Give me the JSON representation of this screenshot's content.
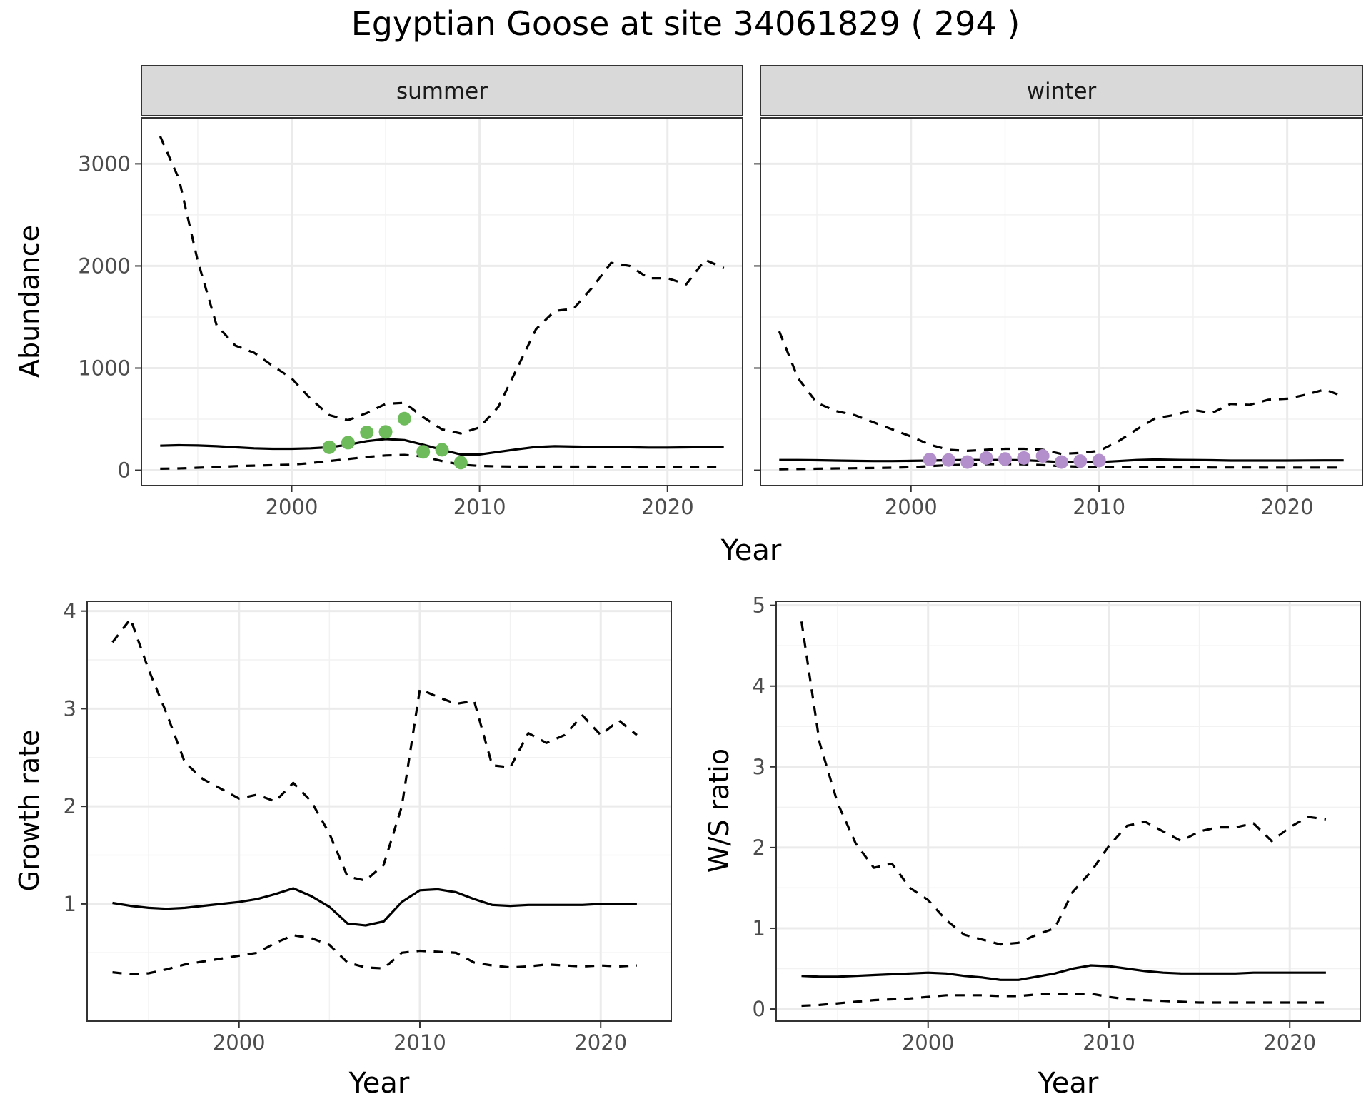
{
  "title": "Egyptian Goose at site 34061829 ( 294 )",
  "colors": {
    "summer_points": "#6dbb5b",
    "winter_points": "#b38fcb",
    "line": "#000000",
    "strip_bg": "#d9d9d9",
    "grid": "#ebebeb"
  },
  "chart_data": [
    {
      "type": "line",
      "panel": "summer",
      "strip_label": "summer",
      "xlabel": "Year",
      "ylabel": "Abundance",
      "xlim": [
        1992,
        2024
      ],
      "ylim": [
        -150,
        3450
      ],
      "xticks": [
        2000,
        2010,
        2020
      ],
      "yticks": [
        0,
        1000,
        2000,
        3000
      ],
      "grid": true,
      "series": [
        {
          "role": "mean",
          "style": "solid",
          "x": [
            1993,
            1994,
            1995,
            1996,
            1997,
            1998,
            1999,
            2000,
            2001,
            2002,
            2003,
            2004,
            2005,
            2006,
            2007,
            2008,
            2009,
            2010,
            2011,
            2012,
            2013,
            2014,
            2015,
            2016,
            2017,
            2018,
            2019,
            2020,
            2021,
            2022,
            2023
          ],
          "y": [
            240,
            245,
            242,
            235,
            225,
            215,
            210,
            210,
            215,
            225,
            250,
            285,
            305,
            295,
            250,
            200,
            155,
            155,
            180,
            205,
            228,
            235,
            232,
            228,
            226,
            225,
            222,
            222,
            224,
            226,
            226
          ]
        },
        {
          "role": "upper",
          "style": "dashed",
          "x": [
            1993,
            1994,
            1995,
            1996,
            1997,
            1998,
            1999,
            2000,
            2001,
            2002,
            2003,
            2004,
            2005,
            2006,
            2007,
            2008,
            2009,
            2010,
            2011,
            2012,
            2013,
            2014,
            2015,
            2016,
            2017,
            2018,
            2019,
            2020,
            2021,
            2022,
            2023
          ],
          "y": [
            3270,
            2850,
            2050,
            1420,
            1220,
            1150,
            1020,
            900,
            700,
            540,
            490,
            560,
            650,
            660,
            520,
            400,
            360,
            420,
            620,
            1000,
            1380,
            1560,
            1580,
            1790,
            2030,
            2000,
            1880,
            1880,
            1820,
            2060,
            1980
          ]
        },
        {
          "role": "lower",
          "style": "dashed",
          "x": [
            1993,
            1994,
            1995,
            1996,
            1997,
            1998,
            1999,
            2000,
            2001,
            2002,
            2003,
            2004,
            2005,
            2006,
            2007,
            2008,
            2009,
            2010,
            2011,
            2012,
            2013,
            2014,
            2015,
            2016,
            2017,
            2018,
            2019,
            2020,
            2021,
            2022,
            2023
          ],
          "y": [
            15,
            18,
            25,
            32,
            40,
            45,
            50,
            55,
            70,
            90,
            110,
            130,
            145,
            150,
            135,
            90,
            55,
            42,
            38,
            35,
            35,
            35,
            35,
            35,
            33,
            32,
            31,
            30,
            30,
            30,
            30
          ]
        },
        {
          "role": "observed",
          "style": "points",
          "x": [
            2002,
            2003,
            2004,
            2005,
            2006,
            2007,
            2008,
            2009
          ],
          "y": [
            225,
            270,
            370,
            375,
            505,
            180,
            200,
            75
          ]
        }
      ]
    },
    {
      "type": "line",
      "panel": "winter",
      "strip_label": "winter",
      "xlabel": "Year",
      "ylabel": "Abundance",
      "xlim": [
        1992,
        2024
      ],
      "ylim": [
        -150,
        3450
      ],
      "xticks": [
        2000,
        2010,
        2020
      ],
      "yticks": [
        0,
        1000,
        2000,
        3000
      ],
      "grid": true,
      "series": [
        {
          "role": "mean",
          "style": "solid",
          "x": [
            1993,
            1994,
            1995,
            1996,
            1997,
            1998,
            1999,
            2000,
            2001,
            2002,
            2003,
            2004,
            2005,
            2006,
            2007,
            2008,
            2009,
            2010,
            2011,
            2012,
            2013,
            2014,
            2015,
            2016,
            2017,
            2018,
            2019,
            2020,
            2021,
            2022,
            2023
          ],
          "y": [
            100,
            100,
            98,
            95,
            92,
            90,
            90,
            92,
            95,
            98,
            100,
            100,
            100,
            98,
            90,
            80,
            78,
            80,
            90,
            100,
            105,
            102,
            100,
            98,
            95,
            95,
            95,
            95,
            96,
            97,
            97
          ]
        },
        {
          "role": "upper",
          "style": "dashed",
          "x": [
            1993,
            1994,
            1995,
            1996,
            1997,
            1998,
            1999,
            2000,
            2001,
            2002,
            2003,
            2004,
            2005,
            2006,
            2007,
            2008,
            2009,
            2010,
            2011,
            2012,
            2013,
            2014,
            2015,
            2016,
            2017,
            2018,
            2019,
            2020,
            2021,
            2022,
            2023
          ],
          "y": [
            1360,
            900,
            660,
            580,
            540,
            470,
            400,
            330,
            250,
            200,
            190,
            200,
            210,
            210,
            200,
            160,
            170,
            190,
            280,
            400,
            510,
            540,
            590,
            560,
            650,
            640,
            690,
            700,
            740,
            790,
            720
          ]
        },
        {
          "role": "lower",
          "style": "dashed",
          "x": [
            1993,
            1994,
            1995,
            1996,
            1997,
            1998,
            1999,
            2000,
            2001,
            2002,
            2003,
            2004,
            2005,
            2006,
            2007,
            2008,
            2009,
            2010,
            2011,
            2012,
            2013,
            2014,
            2015,
            2016,
            2017,
            2018,
            2019,
            2020,
            2021,
            2022,
            2023
          ],
          "y": [
            10,
            12,
            15,
            18,
            20,
            22,
            25,
            30,
            40,
            50,
            55,
            60,
            60,
            58,
            50,
            40,
            35,
            30,
            30,
            30,
            30,
            28,
            28,
            27,
            27,
            27,
            26,
            26,
            26,
            26,
            26
          ]
        },
        {
          "role": "observed",
          "style": "points",
          "x": [
            2001,
            2002,
            2003,
            2004,
            2005,
            2006,
            2007,
            2008,
            2009,
            2010
          ],
          "y": [
            105,
            100,
            80,
            120,
            110,
            120,
            140,
            80,
            90,
            95
          ]
        }
      ]
    },
    {
      "type": "line",
      "panel": "growth",
      "xlabel": "Year",
      "ylabel": "Growth rate",
      "xlim": [
        1991.6,
        2023.9
      ],
      "ylim": [
        -0.2,
        4.1
      ],
      "xticks": [
        2000,
        2010,
        2020
      ],
      "yticks": [
        1,
        2,
        3,
        4
      ],
      "grid": true,
      "series": [
        {
          "role": "mean",
          "style": "solid",
          "x": [
            1993,
            1994,
            1995,
            1996,
            1997,
            1998,
            1999,
            2000,
            2001,
            2002,
            2003,
            2004,
            2005,
            2006,
            2007,
            2008,
            2009,
            2010,
            2011,
            2012,
            2013,
            2014,
            2015,
            2016,
            2017,
            2018,
            2019,
            2020,
            2021,
            2022
          ],
          "y": [
            1.01,
            0.98,
            0.96,
            0.95,
            0.96,
            0.98,
            1.0,
            1.02,
            1.05,
            1.1,
            1.16,
            1.08,
            0.97,
            0.8,
            0.78,
            0.82,
            1.02,
            1.14,
            1.15,
            1.12,
            1.05,
            0.99,
            0.98,
            0.99,
            0.99,
            0.99,
            0.99,
            1.0,
            1.0,
            1.0
          ]
        },
        {
          "role": "upper",
          "style": "dashed",
          "x": [
            1993,
            1994,
            1995,
            1996,
            1997,
            1998,
            1999,
            2000,
            2001,
            2002,
            2003,
            2004,
            2005,
            2006,
            2007,
            2008,
            2009,
            2010,
            2011,
            2012,
            2013,
            2014,
            2015,
            2016,
            2017,
            2018,
            2019,
            2020,
            2021,
            2022
          ],
          "y": [
            3.68,
            3.92,
            3.4,
            2.95,
            2.45,
            2.28,
            2.18,
            2.08,
            2.12,
            2.05,
            2.24,
            2.05,
            1.72,
            1.28,
            1.24,
            1.4,
            2.0,
            3.2,
            3.12,
            3.05,
            3.08,
            2.42,
            2.4,
            2.75,
            2.65,
            2.73,
            2.93,
            2.73,
            2.88,
            2.73
          ]
        },
        {
          "role": "lower",
          "style": "dashed",
          "x": [
            1993,
            1994,
            1995,
            1996,
            1997,
            1998,
            1999,
            2000,
            2001,
            2002,
            2003,
            2004,
            2005,
            2006,
            2007,
            2008,
            2009,
            2010,
            2011,
            2012,
            2013,
            2014,
            2015,
            2016,
            2017,
            2018,
            2019,
            2020,
            2021,
            2022
          ],
          "y": [
            0.3,
            0.28,
            0.29,
            0.33,
            0.38,
            0.41,
            0.44,
            0.47,
            0.5,
            0.6,
            0.68,
            0.65,
            0.58,
            0.4,
            0.35,
            0.34,
            0.5,
            0.52,
            0.51,
            0.5,
            0.4,
            0.37,
            0.35,
            0.36,
            0.38,
            0.37,
            0.36,
            0.37,
            0.36,
            0.37
          ]
        }
      ]
    },
    {
      "type": "line",
      "panel": "ws_ratio",
      "xlabel": "Year",
      "ylabel": "W/S ratio",
      "xlim": [
        1991.6,
        2023.9
      ],
      "ylim": [
        -0.15,
        5.05
      ],
      "xticks": [
        2000,
        2010,
        2020
      ],
      "yticks": [
        0,
        1,
        2,
        3,
        4,
        5
      ],
      "grid": true,
      "series": [
        {
          "role": "mean",
          "style": "solid",
          "x": [
            1993,
            1994,
            1995,
            1996,
            1997,
            1998,
            1999,
            2000,
            2001,
            2002,
            2003,
            2004,
            2005,
            2006,
            2007,
            2008,
            2009,
            2010,
            2011,
            2012,
            2013,
            2014,
            2015,
            2016,
            2017,
            2018,
            2019,
            2020,
            2021,
            2022
          ],
          "y": [
            0.41,
            0.4,
            0.4,
            0.41,
            0.42,
            0.43,
            0.44,
            0.45,
            0.44,
            0.41,
            0.39,
            0.36,
            0.36,
            0.4,
            0.44,
            0.5,
            0.54,
            0.53,
            0.5,
            0.47,
            0.45,
            0.44,
            0.44,
            0.44,
            0.44,
            0.45,
            0.45,
            0.45,
            0.45,
            0.45
          ]
        },
        {
          "role": "upper",
          "style": "dashed",
          "x": [
            1993,
            1994,
            1995,
            1996,
            1997,
            1998,
            1999,
            2000,
            2001,
            2002,
            2003,
            2004,
            2005,
            2006,
            2007,
            2008,
            2009,
            2010,
            2011,
            2012,
            2013,
            2014,
            2015,
            2016,
            2017,
            2018,
            2019,
            2020,
            2021,
            2022
          ],
          "y": [
            4.8,
            3.3,
            2.55,
            2.05,
            1.75,
            1.8,
            1.5,
            1.35,
            1.1,
            0.92,
            0.86,
            0.8,
            0.82,
            0.92,
            1.0,
            1.45,
            1.7,
            2.02,
            2.27,
            2.32,
            2.2,
            2.08,
            2.2,
            2.25,
            2.25,
            2.3,
            2.08,
            2.25,
            2.38,
            2.35
          ]
        },
        {
          "role": "lower",
          "style": "dashed",
          "x": [
            1993,
            1994,
            1995,
            1996,
            1997,
            1998,
            1999,
            2000,
            2001,
            2002,
            2003,
            2004,
            2005,
            2006,
            2007,
            2008,
            2009,
            2010,
            2011,
            2012,
            2013,
            2014,
            2015,
            2016,
            2017,
            2018,
            2019,
            2020,
            2021,
            2022
          ],
          "y": [
            0.04,
            0.05,
            0.07,
            0.09,
            0.11,
            0.12,
            0.13,
            0.15,
            0.17,
            0.17,
            0.17,
            0.16,
            0.16,
            0.18,
            0.19,
            0.19,
            0.19,
            0.15,
            0.12,
            0.11,
            0.1,
            0.09,
            0.08,
            0.08,
            0.08,
            0.08,
            0.08,
            0.08,
            0.08,
            0.08
          ]
        }
      ]
    }
  ]
}
